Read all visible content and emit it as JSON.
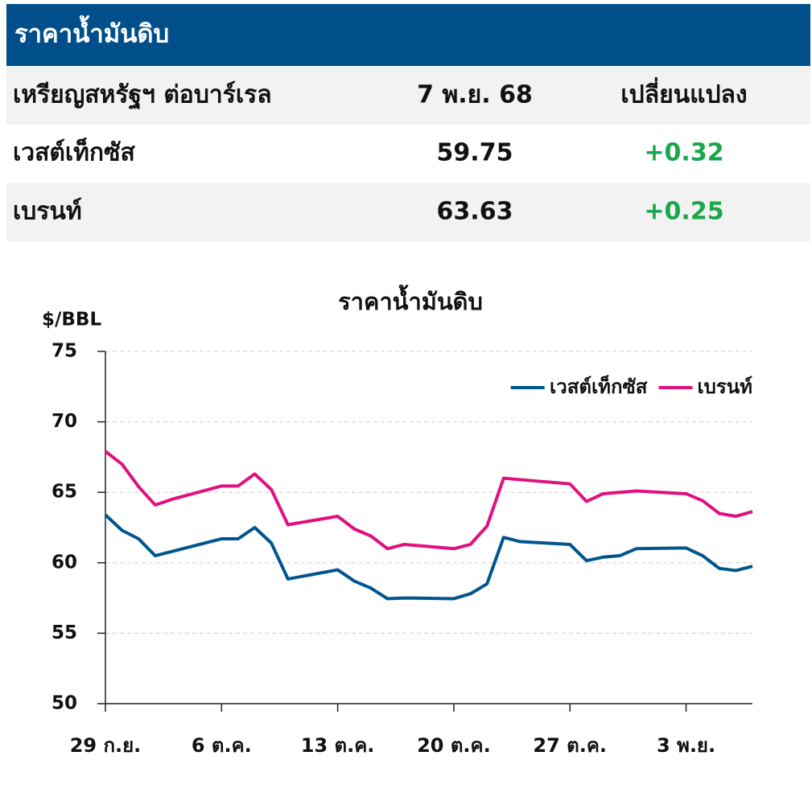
{
  "header": {
    "title": "ราคาน้ำมันดิบ"
  },
  "table": {
    "header": [
      "เหรียญสหรัฐฯ ต่อบาร์เรล",
      "7 พ.ย. 68",
      "เปลี่ยนแปลง"
    ],
    "rows": [
      [
        "เวสต์เท็กซัส",
        "59.75",
        "+0.32"
      ],
      [
        "เบรนท์",
        "63.63",
        "+0.25"
      ]
    ],
    "change_color": "#1aa64a"
  },
  "chart_data": {
    "type": "line",
    "title": "ราคาน้ำมันดิบ",
    "y_label": "$/BBL",
    "x": [
      0,
      1,
      2,
      3,
      4,
      7,
      8,
      9,
      10,
      11,
      14,
      15,
      16,
      17,
      18,
      21,
      22,
      23,
      24,
      25,
      28,
      29,
      30,
      31,
      32,
      35,
      36,
      37,
      38,
      39
    ],
    "xlim": [
      0,
      39
    ],
    "xticks": [
      {
        "value": 0,
        "label": "29 ก.ย."
      },
      {
        "value": 7,
        "label": "6 ต.ค."
      },
      {
        "value": 14,
        "label": "13 ต.ค."
      },
      {
        "value": 21,
        "label": "20 ต.ค."
      },
      {
        "value": 28,
        "label": "27 ต.ค."
      },
      {
        "value": 35,
        "label": "3 พ.ย."
      }
    ],
    "ylim": [
      50,
      75
    ],
    "yticks": [
      50,
      55,
      60,
      65,
      70,
      75
    ],
    "grid": true,
    "legend": "top-right",
    "series": [
      {
        "name": "เวสต์เท็กซัส",
        "color": "#00558f",
        "values": [
          63.4,
          62.3,
          61.7,
          60.5,
          60.8,
          61.7,
          61.7,
          62.5,
          61.4,
          58.85,
          59.5,
          58.7,
          58.2,
          57.45,
          57.5,
          57.45,
          57.8,
          58.5,
          61.8,
          61.5,
          61.3,
          60.15,
          60.4,
          60.5,
          61.0,
          61.05,
          60.5,
          59.6,
          59.45,
          59.75
        ]
      },
      {
        "name": "เบรนท์",
        "color": "#e0117f",
        "values": [
          67.9,
          67.0,
          65.4,
          64.1,
          64.5,
          65.45,
          65.45,
          66.3,
          65.2,
          62.7,
          63.3,
          62.4,
          61.9,
          61.0,
          61.3,
          61.0,
          61.3,
          62.6,
          66.0,
          65.9,
          65.6,
          64.35,
          64.9,
          65.0,
          65.1,
          64.9,
          64.4,
          63.5,
          63.3,
          63.63
        ]
      }
    ]
  }
}
